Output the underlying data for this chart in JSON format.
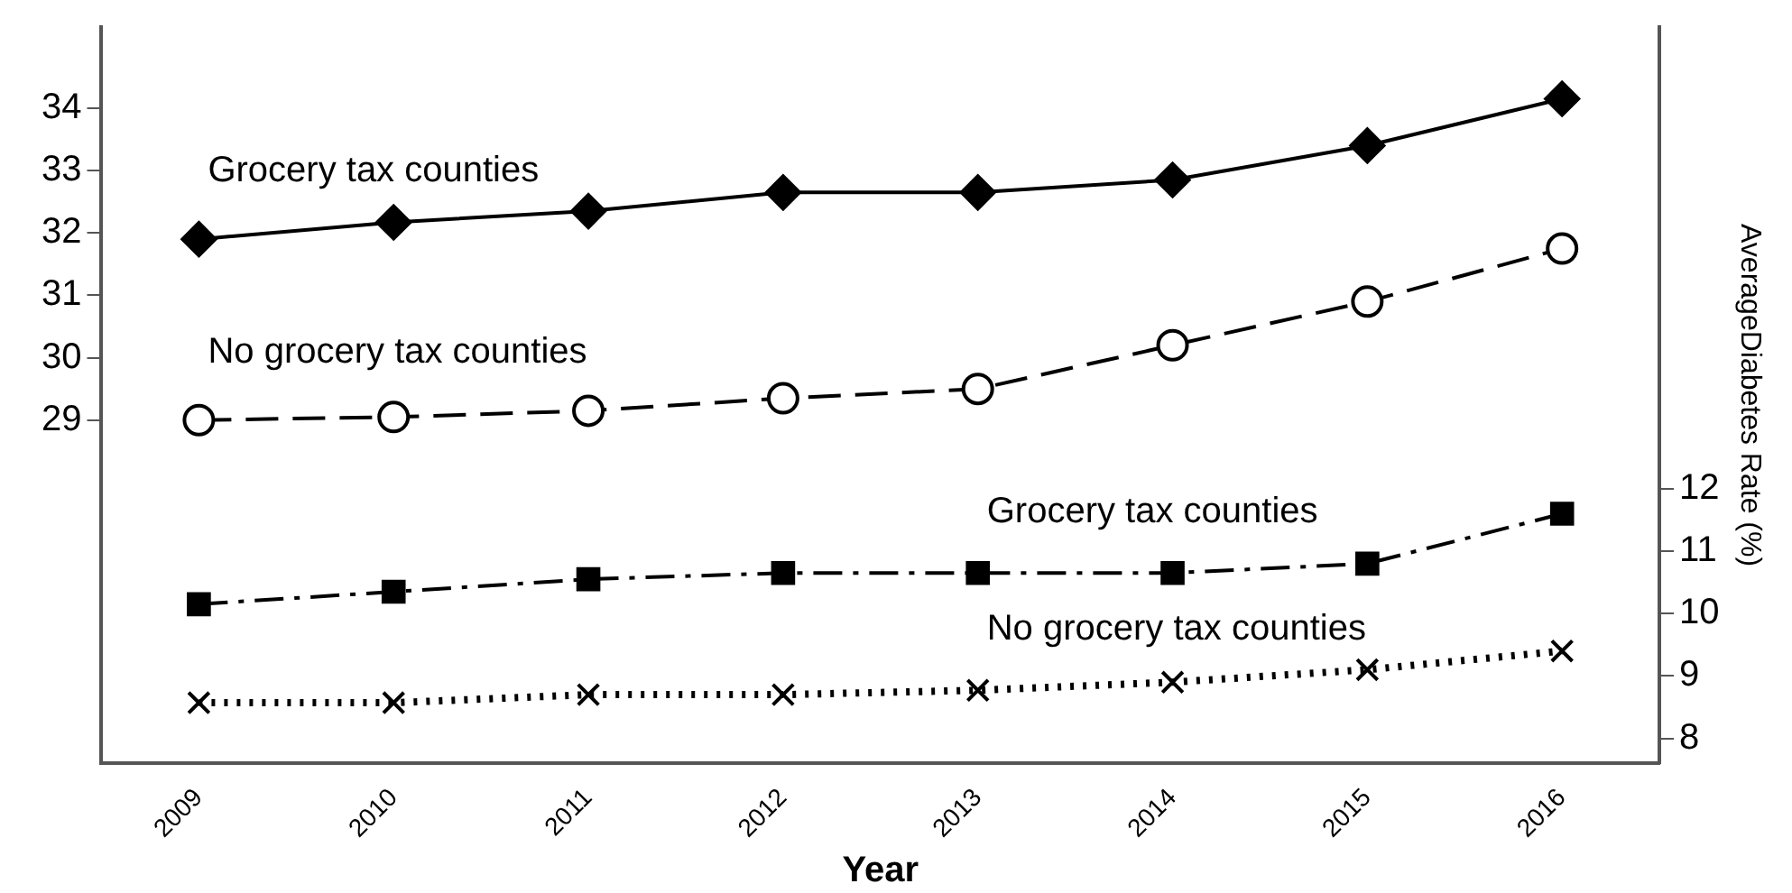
{
  "chart_data": {
    "type": "line",
    "xlabel": "Year",
    "y2label": "AverageDiabetes Rate (%)",
    "categories": [
      "2009",
      "2010",
      "2011",
      "2012",
      "2013",
      "2014",
      "2015",
      "2016"
    ],
    "ylim": [
      23.5,
      35.3
    ],
    "yticks": [
      29,
      30,
      31,
      32,
      33,
      34
    ],
    "y2lim": [
      7.6,
      19.4
    ],
    "y2ticks": [
      8,
      9,
      10,
      11,
      12
    ],
    "grid": false,
    "legend": false,
    "series": [
      {
        "name": "Grocery tax counties",
        "color": "#000000",
        "marker": "diamond",
        "line_style": "solid",
        "values": [
          31.9,
          32.17,
          32.35,
          32.65,
          32.65,
          32.85,
          33.4,
          34.15
        ]
      },
      {
        "name": "No grocery tax counties",
        "color": "#000000",
        "marker": "circle",
        "line_style": "dashed",
        "values": [
          29.0,
          29.05,
          29.15,
          29.35,
          29.5,
          30.2,
          30.9,
          31.75
        ]
      },
      {
        "name": "Grocery tax counties",
        "color": "#000000",
        "marker": "square",
        "line_style": "dashdot",
        "axis": "y2",
        "values": [
          10.15,
          10.35,
          10.55,
          10.65,
          10.65,
          10.65,
          10.8,
          11.6
        ]
      },
      {
        "name": "No grocery tax counties",
        "color": "#000000",
        "marker": "cross",
        "line_style": "dotted",
        "axis": "y2",
        "values": [
          8.57,
          8.57,
          8.7,
          8.7,
          8.77,
          8.9,
          9.1,
          9.4
        ]
      }
    ]
  }
}
